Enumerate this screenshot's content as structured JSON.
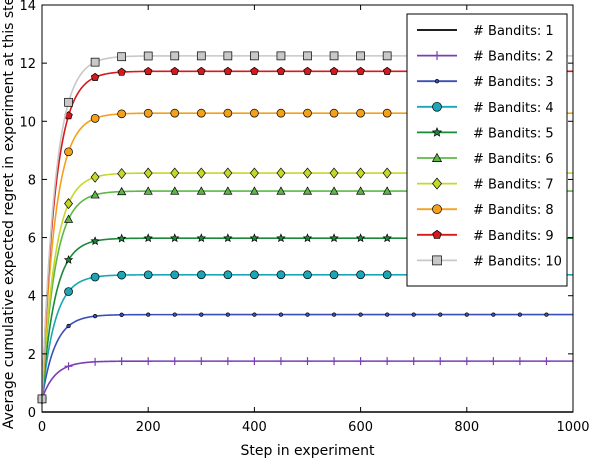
{
  "chart_data": {
    "type": "line",
    "title": "",
    "xlabel": "Step in experiment",
    "ylabel": "Average cumulative expected regret in experiment at this step",
    "xlim": [
      0,
      1000
    ],
    "ylim": [
      0,
      14
    ],
    "xticks": [
      0,
      200,
      400,
      600,
      800,
      1000
    ],
    "yticks": [
      0,
      2,
      4,
      6,
      8,
      10,
      12,
      14
    ],
    "grid": false,
    "legend_position": "top-right",
    "marker_steps": [
      0,
      50,
      100,
      150,
      200,
      250,
      300,
      350,
      400,
      450,
      500,
      550,
      600,
      650,
      700,
      750,
      800,
      850,
      900,
      950
    ],
    "series": [
      {
        "name": "# Bandits: 1",
        "color": "#000000",
        "marker": "none",
        "start": 0.0,
        "plateau": 0.0,
        "k": 30
      },
      {
        "name": "# Bandits: 2",
        "color": "#7b3fb5",
        "marker": "plus",
        "start": 0.45,
        "plateau": 1.75,
        "k": 25
      },
      {
        "name": "# Bandits: 3",
        "color": "#3b4fb8",
        "marker": "dot",
        "start": 0.45,
        "plateau": 3.35,
        "k": 25
      },
      {
        "name": "# Bandits: 4",
        "color": "#1aa6b7",
        "marker": "circle",
        "start": 0.45,
        "plateau": 4.72,
        "k": 25
      },
      {
        "name": "# Bandits: 5",
        "color": "#1a8a3a",
        "marker": "star",
        "start": 0.45,
        "plateau": 5.98,
        "k": 25
      },
      {
        "name": "# Bandits: 6",
        "color": "#5db847",
        "marker": "triangle",
        "start": 0.45,
        "plateau": 7.6,
        "k": 25
      },
      {
        "name": "# Bandits: 7",
        "color": "#c5d82a",
        "marker": "diamond",
        "start": 0.45,
        "plateau": 8.22,
        "k": 25
      },
      {
        "name": "# Bandits: 8",
        "color": "#f5a01a",
        "marker": "circle",
        "start": 0.45,
        "plateau": 10.28,
        "k": 25
      },
      {
        "name": "# Bandits: 9",
        "color": "#d7191c",
        "marker": "pentagon",
        "start": 0.45,
        "plateau": 11.72,
        "k": 25
      },
      {
        "name": "# Bandits: 10",
        "color": "#c8c8c8",
        "marker": "square",
        "start": 0.45,
        "plateau": 12.25,
        "k": 25
      }
    ]
  }
}
